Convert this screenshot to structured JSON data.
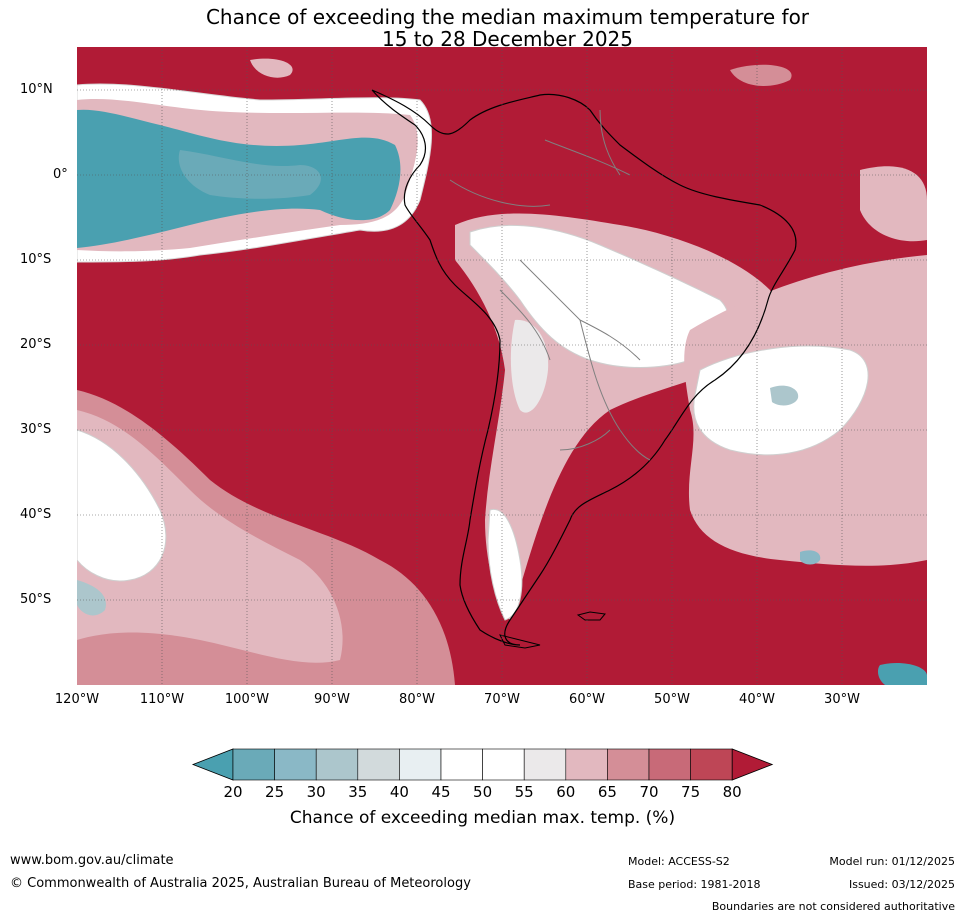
{
  "title": {
    "line1": "Chance of exceeding the median maximum temperature for",
    "line2": "15 to 28 December 2025"
  },
  "map": {
    "lat_labels": [
      "10°N",
      "0°",
      "10°S",
      "20°S",
      "30°S",
      "40°S",
      "50°S"
    ],
    "lon_labels": [
      "120°W",
      "110°W",
      "100°W",
      "90°W",
      "80°W",
      "70°W",
      "60°W",
      "50°W",
      "40°W",
      "30°W"
    ],
    "lat_range": [
      -60,
      15
    ],
    "lon_range": [
      -120,
      -20
    ]
  },
  "colorbar": {
    "ticks": [
      "20",
      "25",
      "30",
      "35",
      "40",
      "45",
      "50",
      "55",
      "60",
      "65",
      "70",
      "75",
      "80"
    ],
    "colors": [
      "#4aa0b0",
      "#6aaab8",
      "#8ab8c6",
      "#acc6cc",
      "#d2dadc",
      "#e8eff2",
      "#ffffff",
      "#ffffff",
      "#ebe9ea",
      "#e2b8bf",
      "#d48e97",
      "#c86a78",
      "#be4656",
      "#b11b36"
    ],
    "label": "Chance of exceeding median max. temp. (%)"
  },
  "colors": {
    "high": "#b11b36",
    "high_mid": "#c86a78",
    "mid_pink": "#e2b8bf",
    "neutral": "#ffffff",
    "low": "#4aa0b0"
  },
  "footer": {
    "website": "www.bom.gov.au/climate",
    "copyright": "© Commonwealth of Australia 2025, Australian Bureau of Meteorology",
    "model": "Model: ACCESS-S2",
    "base_period": "Base period: 1981-2018",
    "model_run": "Model run: 01/12/2025",
    "issued": "Issued: 03/12/2025",
    "disclaimer": "Boundaries are not considered authoritative"
  }
}
